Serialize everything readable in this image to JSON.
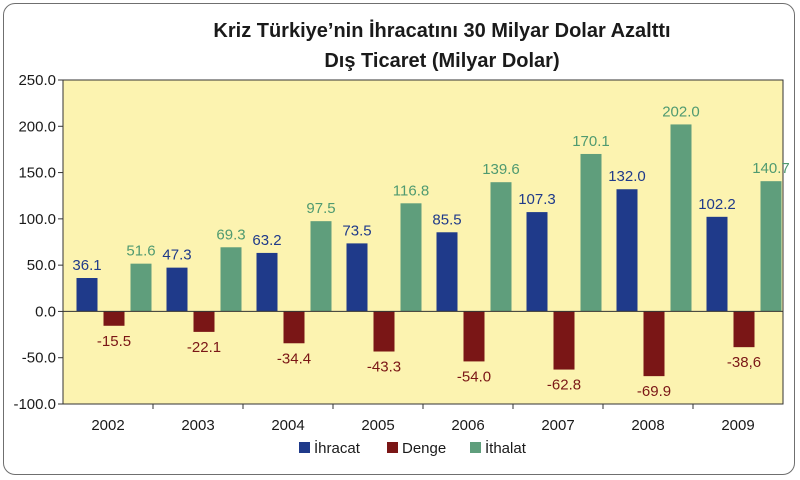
{
  "chart_data": {
    "type": "bar",
    "title": "Kriz Türkiye’nin İhracatını 30 Milyar Dolar Azalttı",
    "subtitle": "Dış Ticaret (Milyar Dolar)",
    "categories": [
      "2002",
      "2003",
      "2004",
      "2005",
      "2006",
      "2007",
      "2008",
      "2009"
    ],
    "series": [
      {
        "name": "İhracat",
        "color": "#1f3a8a",
        "values": [
          36.1,
          47.3,
          63.2,
          73.5,
          85.5,
          107.3,
          132.0,
          102.2
        ],
        "labels": [
          "36.1",
          "47.3",
          "63.2",
          "73.5",
          "85.5",
          "107.3",
          "132.0",
          "102.2"
        ]
      },
      {
        "name": "Denge",
        "color": "#7a1616",
        "values": [
          -15.5,
          -22.1,
          -34.4,
          -43.3,
          -54.0,
          -62.8,
          -69.9,
          -38.6
        ],
        "labels": [
          "-15.5",
          "-22.1",
          "-34.4",
          "-43.3",
          "-54.0",
          "-62.8",
          "-69.9",
          "-38,6"
        ]
      },
      {
        "name": "İthalat",
        "color": "#5f9e7c",
        "label_color": "#4f9a70",
        "values": [
          51.6,
          69.3,
          97.5,
          116.8,
          139.6,
          170.1,
          202.0,
          140.7
        ],
        "labels": [
          "51.6",
          "69.3",
          "97.5",
          "116.8",
          "139.6",
          "170.1",
          "202.0",
          "140.7"
        ]
      }
    ],
    "yticks": [
      "250.0",
      "200.0",
      "150.0",
      "100.0",
      "50.0",
      "0.0",
      "-50.0",
      "-100.0"
    ],
    "ylim": [
      -100,
      250
    ],
    "plot_background": "#fcf3b0",
    "grid": false,
    "legend_position": "bottom-center"
  }
}
